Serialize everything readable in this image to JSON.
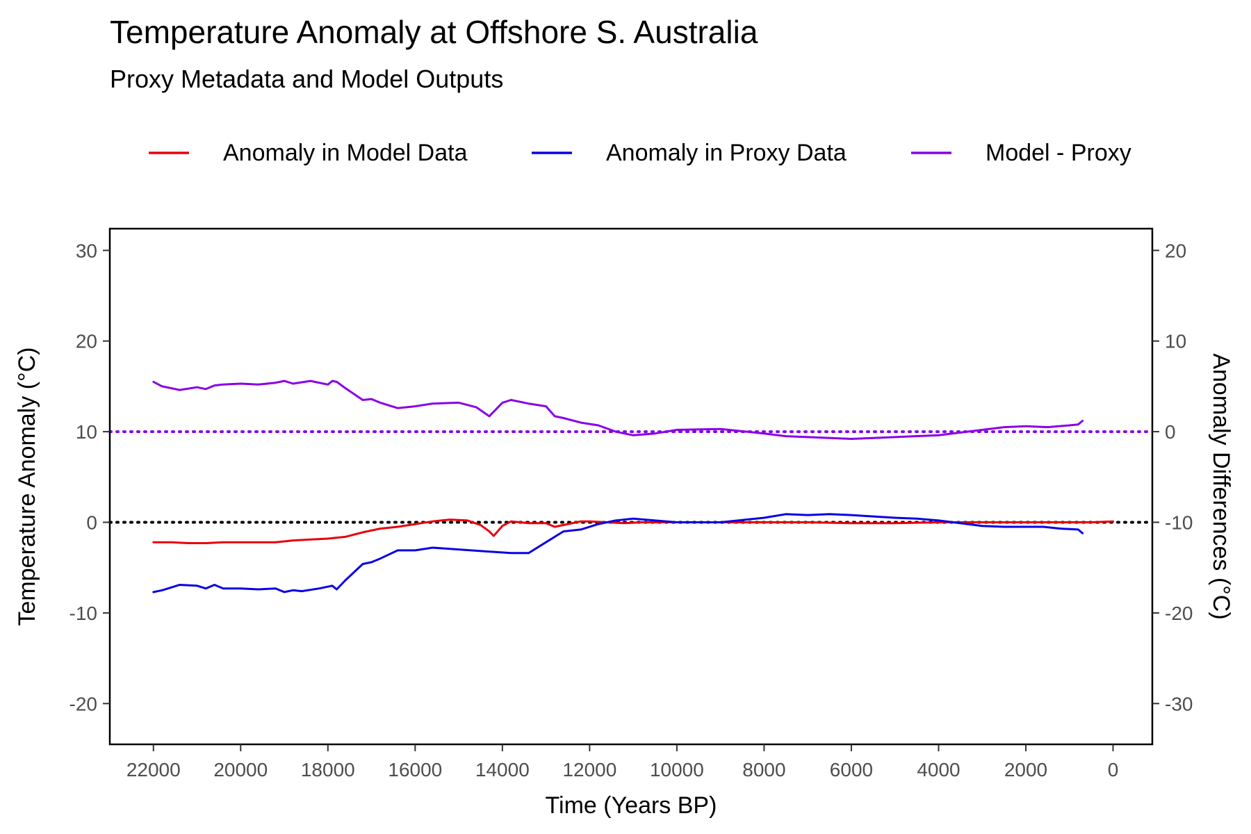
{
  "chart_data": {
    "type": "line",
    "title": "Temperature Anomaly at Offshore S. Australia",
    "subtitle": "Proxy Metadata and Model Outputs",
    "xlabel": "Time (Years BP)",
    "ylabel": "Temperature Anomaly (°C)",
    "y2label": "Anomaly Differences (°C)",
    "x_reversed": true,
    "xlim": [
      23000,
      -900
    ],
    "ylim": [
      -24.5,
      32.4
    ],
    "y2lim": [
      -34.5,
      22.4
    ],
    "y2_offset": 10,
    "x_ticks": [
      22000,
      20000,
      18000,
      16000,
      14000,
      12000,
      10000,
      8000,
      6000,
      4000,
      2000,
      0
    ],
    "y_ticks": [
      -20,
      -10,
      0,
      10,
      20,
      30
    ],
    "y2_ticks": [
      -30,
      -20,
      -10,
      0,
      10,
      20
    ],
    "grid": false,
    "legend_position": "top",
    "reference_lines": [
      {
        "axis": "y",
        "value": 0,
        "style": "dotted",
        "color": "#000000"
      },
      {
        "axis": "y2",
        "value": 0,
        "style": "dotted",
        "color": "#8a00e6"
      }
    ],
    "series": [
      {
        "name": "Anomaly in Model Data",
        "axis": "y",
        "color": "#e8000b",
        "x": [
          22000,
          21600,
          21200,
          20800,
          20400,
          20000,
          19600,
          19200,
          18800,
          18400,
          18000,
          17600,
          17200,
          16800,
          16400,
          16000,
          15600,
          15200,
          14800,
          14500,
          14300,
          14200,
          14000,
          13800,
          13400,
          13000,
          12800,
          12500,
          12200,
          12000,
          11600,
          11200,
          10800,
          10000,
          9000,
          8000,
          7000,
          6000,
          5000,
          4000,
          3000,
          2000,
          1000,
          500,
          0
        ],
        "y": [
          -2.2,
          -2.2,
          -2.3,
          -2.3,
          -2.2,
          -2.2,
          -2.2,
          -2.2,
          -2.0,
          -1.9,
          -1.8,
          -1.6,
          -1.1,
          -0.7,
          -0.5,
          -0.2,
          0.1,
          0.3,
          0.2,
          -0.3,
          -1.0,
          -1.5,
          -0.4,
          0.1,
          -0.1,
          -0.1,
          -0.5,
          -0.2,
          0.1,
          0.1,
          0.0,
          -0.1,
          0.0,
          0.0,
          0.0,
          0.0,
          0.0,
          -0.1,
          -0.1,
          0.0,
          0.0,
          0.0,
          0.0,
          0.0,
          0.1
        ]
      },
      {
        "name": "Anomaly in Proxy Data",
        "axis": "y",
        "color": "#0a00e6",
        "x": [
          22000,
          21800,
          21400,
          21000,
          20800,
          20600,
          20400,
          20000,
          19600,
          19200,
          19000,
          18800,
          18600,
          18200,
          17900,
          17800,
          17600,
          17200,
          17000,
          16800,
          16400,
          16000,
          15600,
          15000,
          14400,
          13800,
          13400,
          13000,
          12600,
          12200,
          11800,
          11400,
          11000,
          10000,
          9000,
          8000,
          7500,
          7000,
          6500,
          6000,
          5000,
          4500,
          4000,
          3000,
          2500,
          2000,
          1600,
          1200,
          800,
          700
        ],
        "y": [
          -7.7,
          -7.5,
          -6.9,
          -7.0,
          -7.3,
          -6.9,
          -7.3,
          -7.3,
          -7.4,
          -7.3,
          -7.7,
          -7.5,
          -7.6,
          -7.3,
          -7.0,
          -7.4,
          -6.4,
          -4.6,
          -4.4,
          -4.0,
          -3.1,
          -3.1,
          -2.8,
          -3.0,
          -3.2,
          -3.4,
          -3.4,
          -2.2,
          -1.0,
          -0.8,
          -0.2,
          0.2,
          0.4,
          0.0,
          0.0,
          0.5,
          0.9,
          0.8,
          0.9,
          0.8,
          0.5,
          0.4,
          0.2,
          -0.4,
          -0.5,
          -0.5,
          -0.5,
          -0.7,
          -0.8,
          -1.2
        ]
      },
      {
        "name": "Model - Proxy",
        "axis": "y2",
        "color": "#8a00e6",
        "x": [
          22000,
          21800,
          21400,
          21000,
          20800,
          20600,
          20400,
          20000,
          19600,
          19200,
          19000,
          18800,
          18400,
          18000,
          17900,
          17800,
          17600,
          17200,
          17000,
          16800,
          16400,
          16000,
          15600,
          15000,
          14600,
          14300,
          14200,
          14000,
          13800,
          13400,
          13000,
          12800,
          12600,
          12200,
          11800,
          11400,
          11000,
          10500,
          10000,
          9000,
          8000,
          7500,
          7000,
          6000,
          5000,
          4000,
          3000,
          2500,
          2000,
          1500,
          1000,
          800,
          700
        ],
        "y": [
          5.5,
          5.0,
          4.6,
          4.9,
          4.7,
          5.1,
          5.2,
          5.3,
          5.2,
          5.4,
          5.6,
          5.3,
          5.6,
          5.2,
          5.6,
          5.5,
          4.8,
          3.5,
          3.6,
          3.2,
          2.6,
          2.8,
          3.1,
          3.2,
          2.7,
          1.7,
          2.2,
          3.2,
          3.5,
          3.1,
          2.8,
          1.7,
          1.5,
          1.0,
          0.7,
          0.0,
          -0.4,
          -0.2,
          0.2,
          0.3,
          -0.2,
          -0.5,
          -0.6,
          -0.8,
          -0.6,
          -0.4,
          0.2,
          0.5,
          0.6,
          0.5,
          0.7,
          0.8,
          1.2
        ]
      }
    ]
  }
}
